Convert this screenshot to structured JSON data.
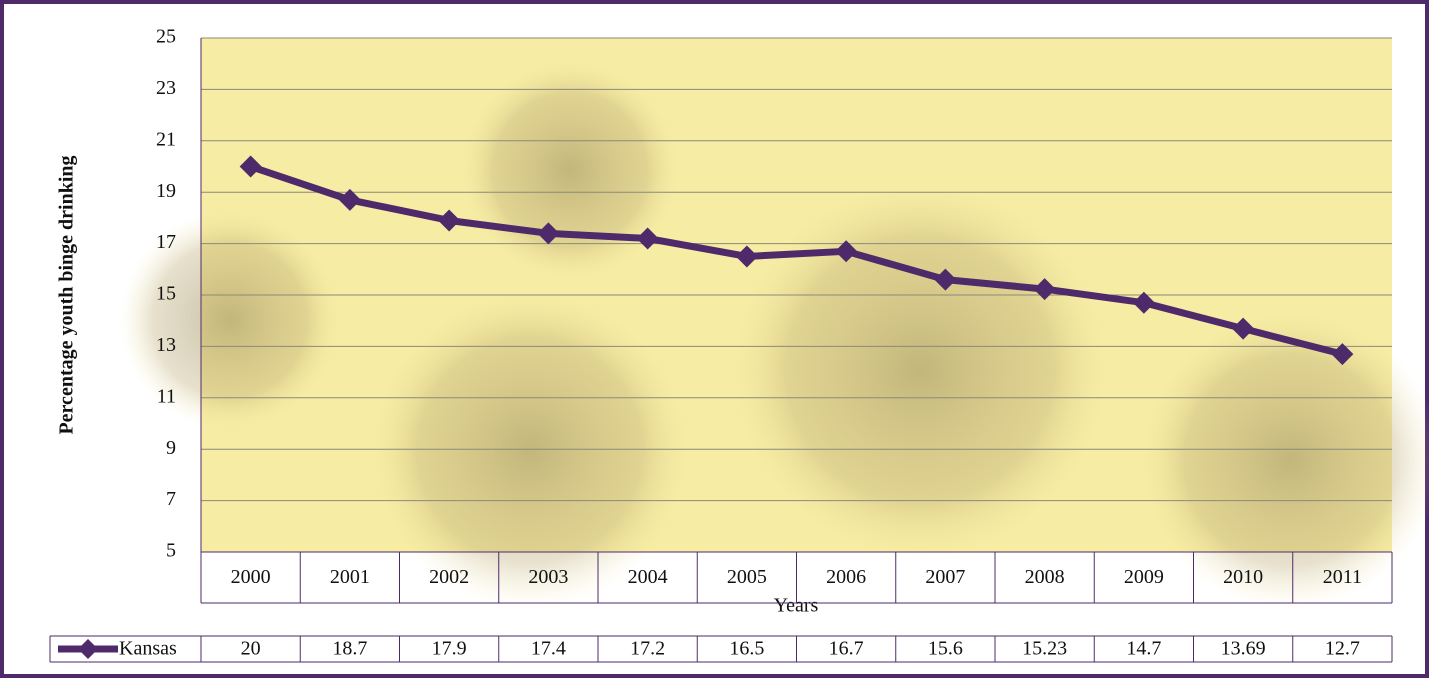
{
  "chart_data": {
    "type": "line",
    "y_label": "Percentage youth binge drinking",
    "x_label": "Years",
    "categories": [
      "2000",
      "2001",
      "2002",
      "2003",
      "2004",
      "2005",
      "2006",
      "2007",
      "2008",
      "2009",
      "2010",
      "2011"
    ],
    "series": [
      {
        "name": "Kansas",
        "color": "#4f2a6b",
        "values": [
          20,
          18.7,
          17.9,
          17.4,
          17.2,
          16.5,
          16.7,
          15.6,
          15.23,
          14.7,
          13.69,
          12.7
        ]
      }
    ],
    "ylim": [
      5,
      25
    ],
    "yticks": [
      5,
      7,
      9,
      11,
      13,
      15,
      17,
      19,
      21,
      23,
      25
    ],
    "grid": true,
    "data_table": true
  }
}
